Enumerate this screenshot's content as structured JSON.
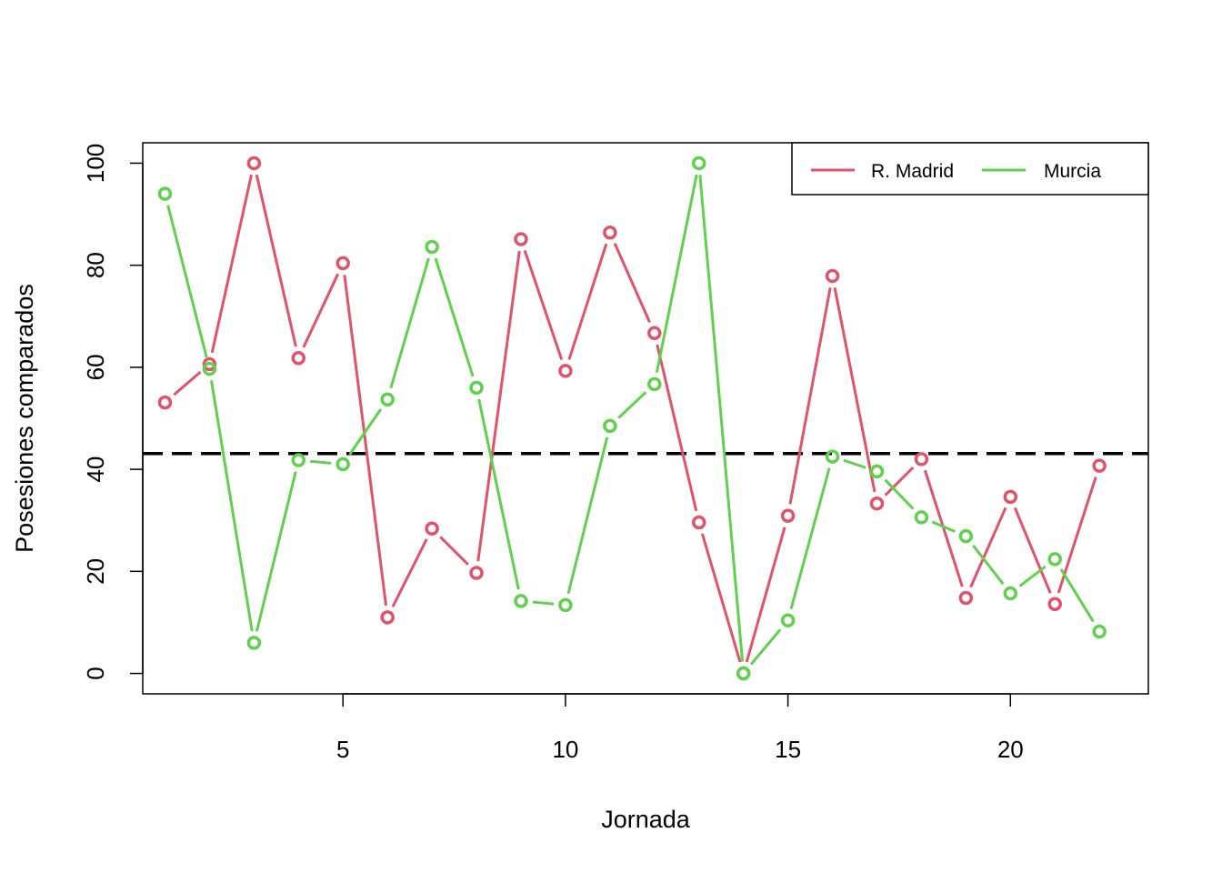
{
  "chart_data": {
    "type": "line",
    "title": "",
    "xlabel": "Jornada",
    "ylabel": "Posesiones comparados",
    "x": [
      1,
      2,
      3,
      4,
      5,
      6,
      7,
      8,
      9,
      10,
      11,
      12,
      13,
      14,
      15,
      16,
      17,
      18,
      19,
      20,
      21,
      22
    ],
    "xlim": [
      0.5,
      23.1
    ],
    "ylim": [
      -4,
      104
    ],
    "x_ticks": [
      5,
      10,
      15,
      20
    ],
    "y_ticks": [
      0,
      20,
      40,
      60,
      80,
      100
    ],
    "grid": false,
    "legend_position": "top-right",
    "reference_line": {
      "y": 43.1,
      "style": "dashed",
      "color": "#000000"
    },
    "series": [
      {
        "name": "R. Madrid",
        "color": "#DF536B",
        "values": [
          53.1,
          60.6,
          100,
          61.8,
          80.4,
          11.0,
          28.4,
          19.7,
          85.1,
          59.3,
          86.4,
          66.7,
          29.6,
          0,
          30.9,
          77.9,
          33.3,
          42.0,
          14.8,
          34.6,
          13.6,
          40.7
        ]
      },
      {
        "name": "Murcia",
        "color": "#61D04F",
        "values": [
          94.0,
          59.7,
          6.0,
          41.8,
          41.0,
          53.7,
          83.6,
          56.0,
          14.2,
          13.4,
          48.5,
          56.7,
          100,
          0,
          10.4,
          42.5,
          39.6,
          30.6,
          26.9,
          15.7,
          22.4,
          8.2
        ]
      }
    ]
  }
}
